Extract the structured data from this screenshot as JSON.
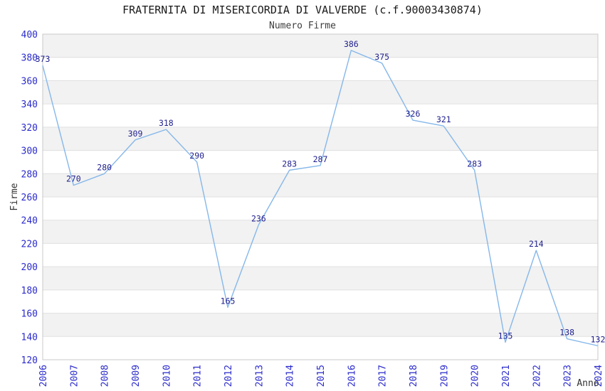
{
  "header": {
    "title": "FRATERNITA DI MISERICORDIA DI VALVERDE (c.f.90003430874)",
    "subtitle": "Numero Firme"
  },
  "chart_data": {
    "type": "line",
    "x": [
      "2006",
      "2007",
      "2008",
      "2009",
      "2010",
      "2011",
      "2012",
      "2013",
      "2014",
      "2015",
      "2016",
      "2017",
      "2018",
      "2019",
      "2020",
      "2021",
      "2022",
      "2023",
      "2024"
    ],
    "series": [
      {
        "name": "Numero Firme",
        "values": [
          373,
          270,
          280,
          309,
          318,
          290,
          165,
          236,
          283,
          287,
          386,
          375,
          326,
          321,
          283,
          135,
          214,
          138,
          132
        ]
      }
    ],
    "title": "FRATERNITA DI MISERICORDIA DI VALVERDE (c.f.90003430874)",
    "subtitle": "Numero Firme",
    "xlabel": "Anno",
    "ylabel": "Firme",
    "ylim": [
      120,
      400
    ],
    "ytick_step": 20,
    "grid": true,
    "legend_position": "none",
    "point_labels_visible": true,
    "colors": {
      "line": "#85b7ea",
      "point_label": "#1f1f8f",
      "tick_label": "#2b2bcc",
      "band_gray": "#f2f2f2",
      "band_white": "#ffffff",
      "gridline": "#e0e0e0",
      "plot_border": "#c9c9c9"
    }
  }
}
